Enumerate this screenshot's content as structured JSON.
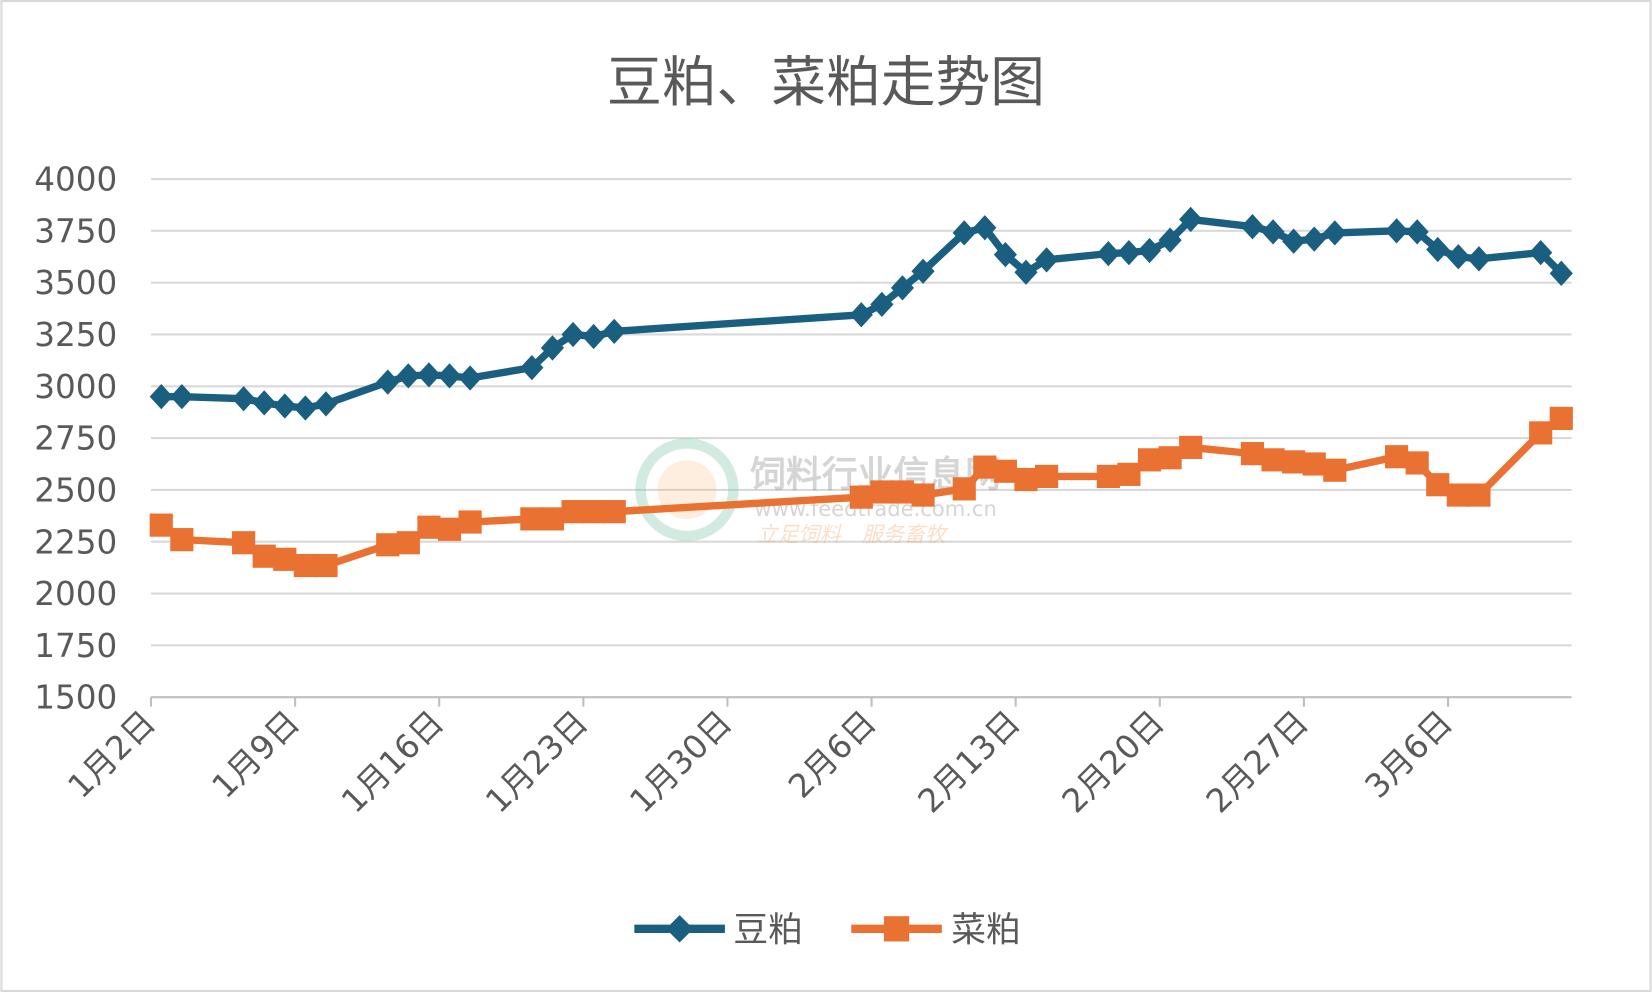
{
  "chart_data": {
    "type": "line",
    "title": "豆粕、菜粕走势图",
    "xlabel": "",
    "ylabel": "",
    "ylim": [
      1500,
      4000
    ],
    "yticks": [
      1500,
      1750,
      2000,
      2250,
      2500,
      2750,
      3000,
      3250,
      3500,
      3750,
      4000
    ],
    "xlim_days": [
      0,
      69
    ],
    "x_unit": "days since 1月2日",
    "xtick_days": [
      0,
      7,
      14,
      21,
      28,
      35,
      42,
      49,
      56,
      63
    ],
    "xtick_labels": [
      "1月2日",
      "1月9日",
      "1月16日",
      "1月23日",
      "1月30日",
      "2月6日",
      "2月13日",
      "2月20日",
      "2月27日",
      "3月6日"
    ],
    "grid": true,
    "legend_position": "bottom",
    "x": [
      0,
      1,
      4,
      5,
      6,
      7,
      8,
      11,
      12,
      13,
      14,
      15,
      18,
      19,
      20,
      21,
      22,
      34,
      35,
      36,
      37,
      39,
      40,
      41,
      42,
      43,
      46,
      47,
      48,
      49,
      50,
      53,
      54,
      55,
      56,
      57,
      60,
      61,
      62,
      63,
      64,
      67,
      68
    ],
    "series": [
      {
        "name": "豆粕",
        "color": "#1a5f80",
        "marker": "diamond",
        "values": [
          2950,
          2950,
          2940,
          2920,
          2905,
          2895,
          2915,
          3020,
          3050,
          3055,
          3050,
          3040,
          3090,
          3185,
          3250,
          3240,
          3265,
          3345,
          3395,
          3475,
          3555,
          3740,
          3765,
          3635,
          3550,
          3610,
          3640,
          3645,
          3655,
          3705,
          3805,
          3770,
          3745,
          3700,
          3710,
          3740,
          3750,
          3745,
          3660,
          3625,
          3615,
          3645,
          3545
        ]
      },
      {
        "name": "菜粕",
        "color": "#e97132",
        "marker": "square",
        "values": [
          2330,
          2260,
          2245,
          2180,
          2165,
          2135,
          2135,
          2235,
          2245,
          2320,
          2310,
          2345,
          2360,
          2360,
          2395,
          2395,
          2395,
          2465,
          2490,
          2490,
          2475,
          2505,
          2610,
          2590,
          2550,
          2565,
          2565,
          2575,
          2645,
          2655,
          2705,
          2675,
          2645,
          2635,
          2625,
          2595,
          2660,
          2630,
          2525,
          2475,
          2475,
          2775,
          2845
        ]
      }
    ]
  },
  "watermark": {
    "site_name": "饲料行业信息网",
    "url": "www.feedtrade.com.cn",
    "slogan": "立足饲料　服务畜牧"
  }
}
